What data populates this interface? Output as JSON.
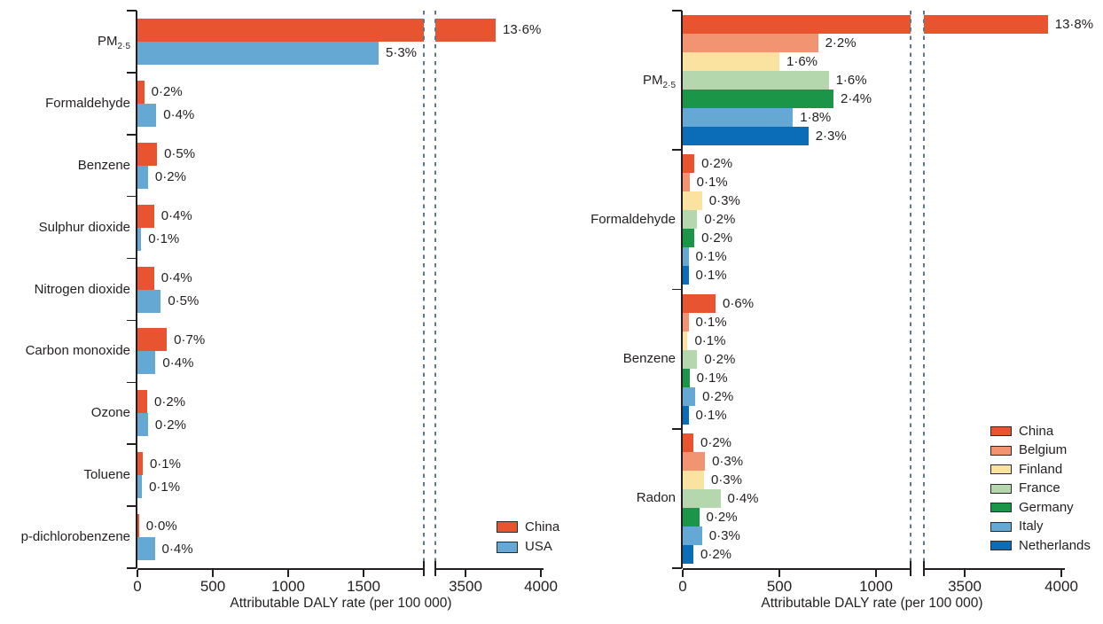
{
  "figure": {
    "background": "#ffffff",
    "text_color": "#231f20",
    "break_dash_color": "#5e7a8a",
    "axis_color": "#231f20"
  },
  "chart_data": [
    {
      "type": "bar",
      "orientation": "horizontal",
      "title": "",
      "xlabel": "Attributable DALY rate (per 100 000)",
      "ylabel": "",
      "grid": false,
      "legend_position": "inside-bottom-right",
      "x_axis": {
        "ticks": [
          0,
          500,
          1000,
          1500,
          3500,
          4000
        ],
        "break_low": 1900,
        "break_high": 3300,
        "range_max": 4020
      },
      "categories": [
        {
          "label": "PM",
          "sub": "2·5"
        },
        {
          "label": "Formaldehyde",
          "sub": ""
        },
        {
          "label": "Benzene",
          "sub": ""
        },
        {
          "label": "Sulphur dioxide",
          "sub": ""
        },
        {
          "label": "Nitrogen dioxide",
          "sub": ""
        },
        {
          "label": "Carbon monoxide",
          "sub": ""
        },
        {
          "label": "Ozone",
          "sub": ""
        },
        {
          "label": "Toluene",
          "sub": ""
        },
        {
          "label": "p-dichlorobenzene",
          "sub": ""
        }
      ],
      "series": [
        {
          "name": "China",
          "color": "#e8542f",
          "values": [
            3700,
            45,
            130,
            110,
            110,
            195,
            65,
            35,
            10
          ],
          "labels": [
            "13·6%",
            "0·2%",
            "0·5%",
            "0·4%",
            "0·4%",
            "0·7%",
            "0·2%",
            "0·1%",
            "0·0%"
          ]
        },
        {
          "name": "USA",
          "color": "#66a8d4",
          "values": [
            1600,
            125,
            70,
            25,
            155,
            120,
            70,
            30,
            115
          ],
          "labels": [
            "5·3%",
            "0·4%",
            "0·2%",
            "0·1%",
            "0·5%",
            "0·4%",
            "0·2%",
            "0·1%",
            "0·4%"
          ]
        }
      ]
    },
    {
      "type": "bar",
      "orientation": "horizontal",
      "title": "",
      "xlabel": "Attributable DALY rate (per 100 000)",
      "ylabel": "",
      "grid": false,
      "legend_position": "inside-middle-right",
      "x_axis": {
        "ticks": [
          0,
          500,
          1000,
          3500,
          4000
        ],
        "break_low": 1180,
        "break_high": 3290,
        "range_max": 4020
      },
      "categories": [
        {
          "label": "PM",
          "sub": "2·5"
        },
        {
          "label": "Formaldehyde",
          "sub": ""
        },
        {
          "label": "Benzene",
          "sub": ""
        },
        {
          "label": "Radon",
          "sub": ""
        }
      ],
      "series": [
        {
          "name": "China",
          "color": "#e8542f",
          "values": [
            3930,
            60,
            170,
            55
          ],
          "labels": [
            "13·8%",
            "0·2%",
            "0·6%",
            "0·2%"
          ]
        },
        {
          "name": "Belgium",
          "color": "#f29371",
          "values": [
            700,
            35,
            30,
            115
          ],
          "labels": [
            "2·2%",
            "0·1%",
            "0·1%",
            "0·3%"
          ]
        },
        {
          "name": "Finland",
          "color": "#fae3a0",
          "values": [
            500,
            100,
            25,
            110
          ],
          "labels": [
            "1·6%",
            "0·3%",
            "0·1%",
            "0·3%"
          ]
        },
        {
          "name": "France",
          "color": "#b5d7ad",
          "values": [
            755,
            75,
            75,
            195
          ],
          "labels": [
            "1·6%",
            "0·2%",
            "0·2%",
            "0·4%"
          ]
        },
        {
          "name": "Germany",
          "color": "#1b9648",
          "values": [
            780,
            60,
            35,
            85
          ],
          "labels": [
            "2·4%",
            "0·2%",
            "0·1%",
            "0·2%"
          ]
        },
        {
          "name": "Italy",
          "color": "#66a8d4",
          "values": [
            570,
            30,
            65,
            100
          ],
          "labels": [
            "1·8%",
            "0·1%",
            "0·2%",
            "0·3%"
          ]
        },
        {
          "name": "Netherlands",
          "color": "#0b6db7",
          "values": [
            650,
            30,
            30,
            55
          ],
          "labels": [
            "2·3%",
            "0·1%",
            "0·1%",
            "0·2%"
          ]
        }
      ]
    }
  ]
}
